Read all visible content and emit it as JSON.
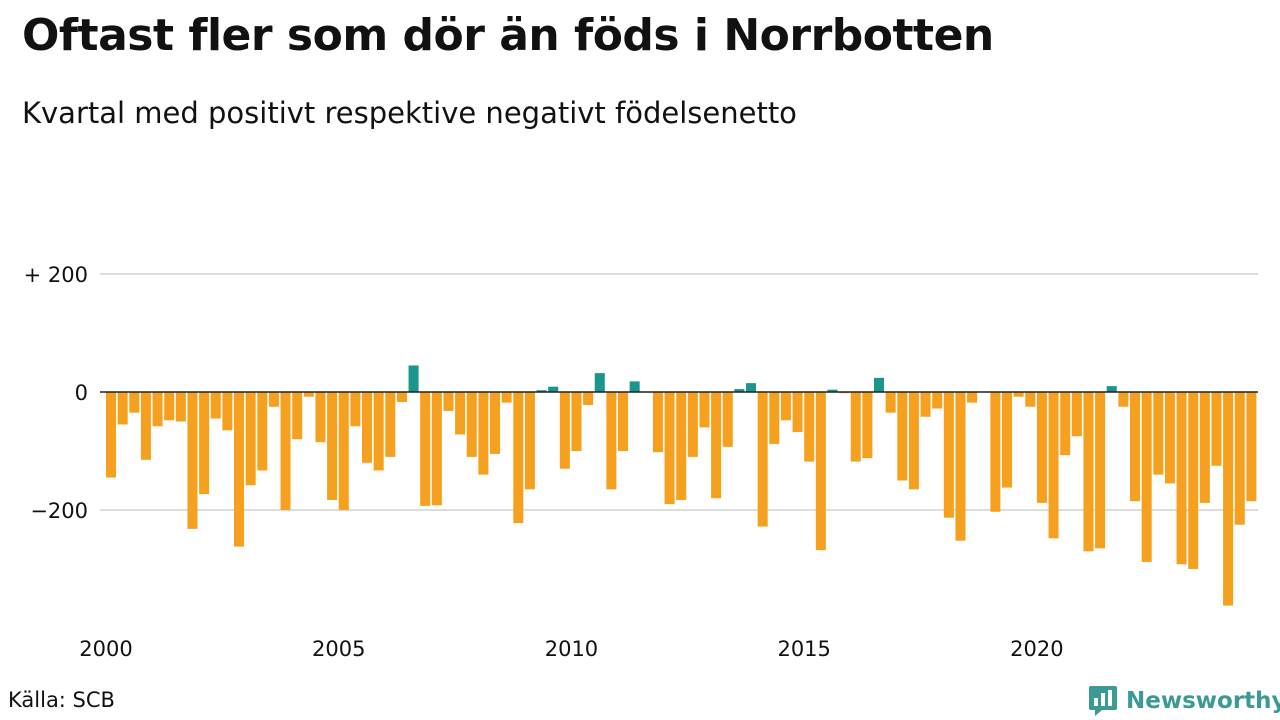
{
  "title": "Oftast fler som dör än föds i Norrbotten",
  "subtitle": "Kvartal med positivt respektive negativt födelsenetto",
  "source": "Källa: SCB",
  "brand": {
    "name": "Newsworthy",
    "icon": "newsworthy-logo-icon"
  },
  "colors": {
    "negative": "#f5a11f",
    "positive": "#1b968c",
    "grid": "#dddddd",
    "axis": "#222222",
    "text": "#111111"
  },
  "chart_data": {
    "type": "bar",
    "title": "Oftast fler som dör än föds i Norrbotten",
    "subtitle": "Kvartal med positivt respektive negativt födelsenetto",
    "xlabel": "",
    "ylabel": "",
    "ylim": [
      -370,
      220
    ],
    "y_ticks": [
      {
        "value": 200,
        "label": "+ 200"
      },
      {
        "value": 0,
        "label": "0"
      },
      {
        "value": -200,
        "label": "−200"
      }
    ],
    "x_ticks": [
      {
        "value": 2000,
        "label": "2000"
      },
      {
        "value": 2005,
        "label": "2005"
      },
      {
        "value": 2010,
        "label": "2010"
      },
      {
        "value": 2015,
        "label": "2015"
      },
      {
        "value": 2020,
        "label": "2020"
      }
    ],
    "x_start": 2000,
    "periods_per_year": 4,
    "grid": true,
    "legend": "none",
    "values": [
      -145,
      -55,
      -35,
      -115,
      -58,
      -48,
      -50,
      -232,
      -173,
      -45,
      -65,
      -262,
      -158,
      -133,
      -25,
      -200,
      -80,
      -8,
      -85,
      -183,
      -200,
      -58,
      -120,
      -133,
      -110,
      -17,
      45,
      -193,
      -192,
      -32,
      -72,
      -110,
      -140,
      -105,
      -18,
      -222,
      -165,
      3,
      9,
      -130,
      -100,
      -22,
      32,
      -165,
      -100,
      18,
      0,
      -102,
      -190,
      -183,
      -110,
      -60,
      -180,
      -93,
      5,
      15,
      -228,
      -88,
      -48,
      -68,
      -118,
      -268,
      4,
      -2,
      -118,
      -112,
      24,
      -35,
      -150,
      -165,
      -42,
      -28,
      -213,
      -252,
      -18,
      0,
      -203,
      -162,
      -8,
      -25,
      -188,
      -248,
      -107,
      -75,
      -270,
      -265,
      10,
      -25,
      -185,
      -288,
      -140,
      -155,
      -292,
      -300,
      -188,
      -125,
      -362,
      -225,
      -185
    ]
  }
}
